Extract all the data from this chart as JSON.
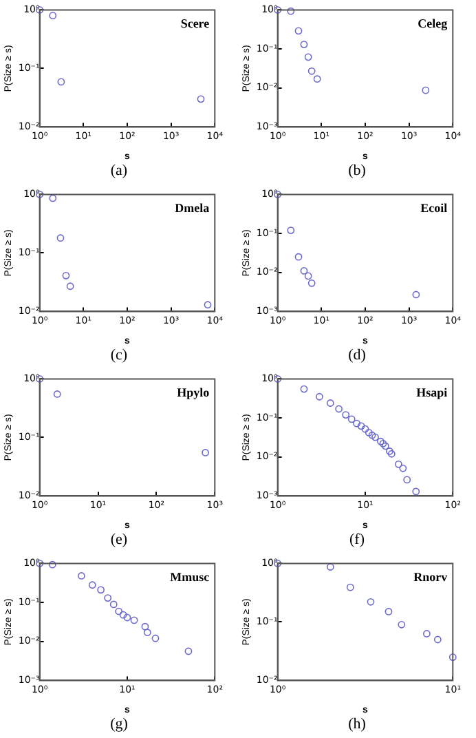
{
  "chart_data": [
    {
      "type": "scatter",
      "title": "Scere",
      "xlabel": "s",
      "ylabel": "P(Size ≥ s)",
      "annotations": [
        "(a)"
      ],
      "log": "xy",
      "marker": "circle",
      "grid": false,
      "legend": false,
      "color": "#6a6acd",
      "xlim": [
        1,
        10000
      ],
      "ylim": [
        0.01,
        1
      ],
      "xticks": [
        {
          "value": 1,
          "label": "10⁰"
        },
        {
          "value": 10,
          "label": "10¹"
        },
        {
          "value": 100,
          "label": "10²"
        },
        {
          "value": 1000,
          "label": "10³"
        },
        {
          "value": 10000,
          "label": "10⁴"
        }
      ],
      "yticks": [
        {
          "value": 0.01,
          "label": "10⁻²"
        },
        {
          "value": 0.1,
          "label": "10⁻¹"
        },
        {
          "value": 1,
          "label": "10⁰"
        }
      ],
      "x": [
        1,
        2,
        3.1,
        4800
      ],
      "values": [
        1,
        0.8,
        0.059,
        0.03
      ]
    },
    {
      "type": "scatter",
      "title": "Celeg",
      "xlabel": "s",
      "ylabel": "P(Size ≥ s)",
      "annotations": [
        "(b)"
      ],
      "log": "xy",
      "marker": "circle",
      "grid": false,
      "legend": false,
      "color": "#6a6acd",
      "xlim": [
        1,
        10000
      ],
      "ylim": [
        0.001,
        1
      ],
      "xticks": [
        {
          "value": 1,
          "label": "10⁰"
        },
        {
          "value": 10,
          "label": "10¹"
        },
        {
          "value": 100,
          "label": "10²"
        },
        {
          "value": 1000,
          "label": "10³"
        },
        {
          "value": 10000,
          "label": "10⁴"
        }
      ],
      "yticks": [
        {
          "value": 0.001,
          "label": "10⁻³"
        },
        {
          "value": 0.01,
          "label": "10⁻²"
        },
        {
          "value": 0.1,
          "label": "10⁻¹"
        },
        {
          "value": 1,
          "label": "10⁰"
        }
      ],
      "x": [
        1,
        2,
        3,
        4,
        5,
        6,
        8,
        2400
      ],
      "values": [
        1,
        0.93,
        0.29,
        0.13,
        0.062,
        0.027,
        0.017,
        0.0087
      ]
    },
    {
      "type": "scatter",
      "title": "Dmela",
      "xlabel": "s",
      "ylabel": "P(Size ≥ s)",
      "annotations": [
        "(c)"
      ],
      "log": "xy",
      "marker": "circle",
      "grid": false,
      "legend": false,
      "color": "#6a6acd",
      "xlim": [
        1,
        10000
      ],
      "ylim": [
        0.01,
        1
      ],
      "xticks": [
        {
          "value": 1,
          "label": "10⁰"
        },
        {
          "value": 10,
          "label": "10¹"
        },
        {
          "value": 100,
          "label": "10²"
        },
        {
          "value": 1000,
          "label": "10³"
        },
        {
          "value": 10000,
          "label": "10⁴"
        }
      ],
      "yticks": [
        {
          "value": 0.01,
          "label": "10⁻²"
        },
        {
          "value": 0.1,
          "label": "10⁻¹"
        },
        {
          "value": 1,
          "label": "10⁰"
        }
      ],
      "x": [
        1,
        2,
        3,
        4,
        5,
        6900
      ],
      "values": [
        1,
        0.86,
        0.18,
        0.041,
        0.027,
        0.013
      ]
    },
    {
      "type": "scatter",
      "title": "Ecoil",
      "xlabel": "s",
      "ylabel": "P(Size ≥ s)",
      "annotations": [
        "(d)"
      ],
      "log": "xy",
      "marker": "circle",
      "grid": false,
      "legend": false,
      "color": "#6a6acd",
      "xlim": [
        1,
        10000
      ],
      "ylim": [
        0.001,
        1
      ],
      "xticks": [
        {
          "value": 1,
          "label": "10⁰"
        },
        {
          "value": 10,
          "label": "10¹"
        },
        {
          "value": 100,
          "label": "10²"
        },
        {
          "value": 1000,
          "label": "10³"
        },
        {
          "value": 10000,
          "label": "10⁴"
        }
      ],
      "yticks": [
        {
          "value": 0.001,
          "label": "10⁻³"
        },
        {
          "value": 0.01,
          "label": "10⁻²"
        },
        {
          "value": 0.1,
          "label": "10⁻¹"
        },
        {
          "value": 1,
          "label": "10⁰"
        }
      ],
      "x": [
        1,
        2,
        3,
        4,
        5,
        6,
        1450
      ],
      "values": [
        1,
        0.12,
        0.025,
        0.011,
        0.0081,
        0.0053,
        0.0027
      ]
    },
    {
      "type": "scatter",
      "title": "Hpylo",
      "xlabel": "s",
      "ylabel": "P(Size ≥ s)",
      "annotations": [
        "(e)"
      ],
      "log": "xy",
      "marker": "circle",
      "grid": false,
      "legend": false,
      "color": "#6a6acd",
      "xlim": [
        1,
        1000
      ],
      "ylim": [
        0.01,
        1
      ],
      "xticks": [
        {
          "value": 1,
          "label": "10⁰"
        },
        {
          "value": 10,
          "label": "10¹"
        },
        {
          "value": 100,
          "label": "10²"
        },
        {
          "value": 1000,
          "label": "10³"
        }
      ],
      "yticks": [
        {
          "value": 0.01,
          "label": "10⁻²"
        },
        {
          "value": 0.1,
          "label": "10⁻¹"
        },
        {
          "value": 1,
          "label": "10⁰"
        }
      ],
      "x": [
        1,
        2,
        690
      ],
      "values": [
        1,
        0.55,
        0.055
      ]
    },
    {
      "type": "scatter",
      "title": "Hsapi",
      "xlabel": "s",
      "ylabel": "P(Size ≥ s)",
      "annotations": [
        "(f)"
      ],
      "log": "xy",
      "marker": "circle",
      "grid": false,
      "legend": false,
      "color": "#6a6acd",
      "xlim": [
        1,
        100
      ],
      "ylim": [
        0.001,
        1
      ],
      "xticks": [
        {
          "value": 1,
          "label": "10⁰"
        },
        {
          "value": 10,
          "label": "10¹"
        },
        {
          "value": 100,
          "label": "10²"
        }
      ],
      "yticks": [
        {
          "value": 0.001,
          "label": "10⁻³"
        },
        {
          "value": 0.01,
          "label": "10⁻²"
        },
        {
          "value": 0.1,
          "label": "10⁻¹"
        },
        {
          "value": 1,
          "label": "10⁰"
        }
      ],
      "x": [
        1,
        2,
        3,
        4,
        5,
        6,
        7,
        8,
        9,
        10,
        11,
        12,
        13,
        15,
        16,
        17,
        19,
        20,
        24,
        27,
        30,
        38
      ],
      "values": [
        1,
        0.55,
        0.35,
        0.24,
        0.17,
        0.12,
        0.093,
        0.072,
        0.062,
        0.052,
        0.042,
        0.036,
        0.032,
        0.025,
        0.022,
        0.019,
        0.014,
        0.012,
        0.0065,
        0.0051,
        0.0026,
        0.0013
      ]
    },
    {
      "type": "scatter",
      "title": "Mmusc",
      "xlabel": "s",
      "ylabel": "P(Size ≥ s)",
      "annotations": [
        "(g)"
      ],
      "log": "xy",
      "marker": "circle",
      "grid": false,
      "legend": false,
      "color": "#6a6acd",
      "xlim": [
        1,
        100
      ],
      "ylim": [
        0.001,
        1
      ],
      "xticks": [
        {
          "value": 1,
          "label": "10⁰"
        },
        {
          "value": 10,
          "label": "10¹"
        },
        {
          "value": 100,
          "label": "10²"
        }
      ],
      "yticks": [
        {
          "value": 0.001,
          "label": "10⁻³"
        },
        {
          "value": 0.01,
          "label": "10⁻²"
        },
        {
          "value": 0.1,
          "label": "10⁻¹"
        },
        {
          "value": 1,
          "label": "10⁰"
        }
      ],
      "x": [
        1,
        1.4,
        3,
        4,
        5,
        6,
        7,
        8,
        9,
        10,
        12,
        16,
        17,
        21,
        50
      ],
      "values": [
        1,
        0.93,
        0.48,
        0.28,
        0.21,
        0.13,
        0.089,
        0.059,
        0.048,
        0.041,
        0.035,
        0.024,
        0.017,
        0.012,
        0.0056
      ]
    },
    {
      "type": "scatter",
      "title": "Rnorv",
      "xlabel": "s",
      "ylabel": "P(Size ≥ s)",
      "annotations": [
        "(h)"
      ],
      "log": "xy",
      "marker": "circle",
      "grid": false,
      "legend": false,
      "color": "#6a6acd",
      "xlim": [
        1,
        10
      ],
      "ylim": [
        0.01,
        1
      ],
      "xticks": [
        {
          "value": 1,
          "label": "10⁰"
        },
        {
          "value": 10,
          "label": "10¹"
        }
      ],
      "yticks": [
        {
          "value": 0.01,
          "label": "10⁻²"
        },
        {
          "value": 0.1,
          "label": "10⁻¹"
        },
        {
          "value": 1,
          "label": "10⁰"
        }
      ],
      "x": [
        1,
        2,
        2.6,
        3.4,
        4.3,
        5.1,
        7.1,
        8.2,
        10
      ],
      "values": [
        1,
        0.87,
        0.39,
        0.22,
        0.15,
        0.09,
        0.063,
        0.05,
        0.025
      ]
    }
  ]
}
